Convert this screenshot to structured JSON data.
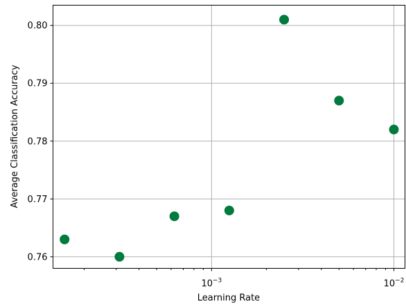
{
  "chart_data": {
    "type": "scatter",
    "title": "",
    "xlabel": "Learning Rate",
    "ylabel": "Average Classification Accuracy",
    "xscale": "log",
    "xlim": [
      0.000135,
      0.0115
    ],
    "ylim": [
      0.758,
      0.8035
    ],
    "grid": true,
    "marker_color": "#007a3d",
    "x_major_ticks": [
      {
        "value": 0.001,
        "base": "10",
        "exp": "−3"
      },
      {
        "value": 0.01,
        "base": "10",
        "exp": "−2"
      }
    ],
    "y_ticks": [
      {
        "value": 0.76,
        "label": "0.76"
      },
      {
        "value": 0.77,
        "label": "0.77"
      },
      {
        "value": 0.78,
        "label": "0.78"
      },
      {
        "value": 0.79,
        "label": "0.79"
      },
      {
        "value": 0.8,
        "label": "0.80"
      }
    ],
    "points": [
      {
        "x": 0.00015625,
        "y": 0.763
      },
      {
        "x": 0.0003125,
        "y": 0.76
      },
      {
        "x": 0.000625,
        "y": 0.767
      },
      {
        "x": 0.00125,
        "y": 0.768
      },
      {
        "x": 0.0025,
        "y": 0.801
      },
      {
        "x": 0.005,
        "y": 0.787
      },
      {
        "x": 0.01,
        "y": 0.782
      }
    ]
  }
}
